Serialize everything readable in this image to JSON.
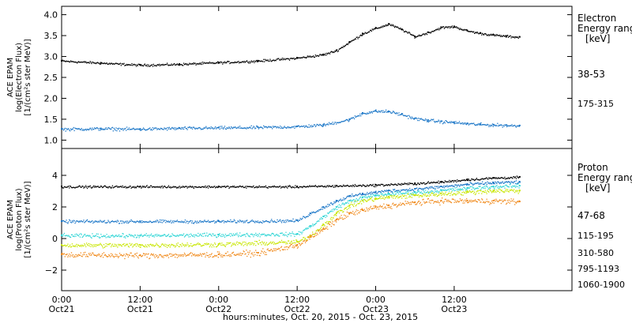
{
  "chart_data": [
    {
      "type": "scatter",
      "panel": "electron",
      "ylabel_lines": [
        "ACE EPAM",
        "log(Electron Flux)",
        "[1/(cm²s ster MeV)]"
      ],
      "ylim": [
        0.8,
        4.2
      ],
      "yticks": [
        1.0,
        1.5,
        2.0,
        2.5,
        3.0,
        3.5,
        4.0
      ],
      "ytick_labels": [
        "1.0",
        "1.5",
        "2.0",
        "2.5",
        "3.0",
        "3.5",
        "4.0"
      ],
      "legend_title_lines": [
        "Electron",
        "Energy ranges",
        "[keV]"
      ],
      "series": [
        {
          "name": "38-53",
          "color": "#000000",
          "x": [
            0,
            6,
            12,
            18,
            24,
            30,
            36,
            40,
            42,
            44,
            46,
            48,
            50,
            52,
            54,
            56,
            58,
            60,
            62,
            64,
            66,
            68,
            70
          ],
          "y": [
            2.9,
            2.85,
            2.8,
            2.82,
            2.86,
            2.9,
            2.97,
            3.05,
            3.15,
            3.35,
            3.55,
            3.68,
            3.78,
            3.65,
            3.48,
            3.58,
            3.7,
            3.72,
            3.62,
            3.56,
            3.52,
            3.49,
            3.47
          ]
        },
        {
          "name": "175-315",
          "color": "#1e78c8",
          "x": [
            0,
            6,
            12,
            18,
            24,
            30,
            36,
            40,
            44,
            46,
            48,
            50,
            52,
            54,
            56,
            58,
            60,
            62,
            64,
            66,
            68,
            70
          ],
          "y": [
            1.27,
            1.28,
            1.27,
            1.29,
            1.3,
            1.31,
            1.33,
            1.37,
            1.5,
            1.65,
            1.7,
            1.69,
            1.62,
            1.52,
            1.48,
            1.45,
            1.43,
            1.4,
            1.38,
            1.37,
            1.36,
            1.35
          ]
        }
      ]
    },
    {
      "type": "scatter",
      "panel": "proton",
      "ylabel_lines": [
        "ACE EPAM",
        "log(Proton Flux)",
        "[1/(cm²s ster MeV)]"
      ],
      "ylim": [
        -3.3,
        5.7
      ],
      "yticks": [
        -2,
        0,
        2,
        4
      ],
      "ytick_labels": [
        "−2",
        "0",
        "2",
        "4"
      ],
      "legend_title_lines": [
        "Proton",
        "Energy ranges",
        "[keV]"
      ],
      "series": [
        {
          "name": "47-68",
          "color": "#000000",
          "x": [
            0,
            12,
            24,
            36,
            42,
            48,
            54,
            58,
            62,
            66,
            70
          ],
          "y": [
            3.3,
            3.3,
            3.3,
            3.3,
            3.35,
            3.4,
            3.5,
            3.6,
            3.75,
            3.85,
            3.9
          ]
        },
        {
          "name": "115-195",
          "color": "#1e78c8",
          "x": [
            0,
            12,
            24,
            36,
            38,
            40,
            42,
            44,
            46,
            48,
            50,
            54,
            58,
            62,
            66,
            70
          ],
          "y": [
            1.1,
            1.1,
            1.1,
            1.15,
            1.6,
            2.0,
            2.4,
            2.7,
            2.85,
            2.95,
            3.05,
            3.15,
            3.3,
            3.45,
            3.55,
            3.6
          ]
        },
        {
          "name": "310-580",
          "color": "#33d6d6",
          "x": [
            0,
            12,
            24,
            36,
            38,
            40,
            42,
            44,
            46,
            48,
            50,
            54,
            58,
            62,
            66,
            70
          ],
          "y": [
            0.2,
            0.2,
            0.25,
            0.3,
            0.8,
            1.4,
            2.0,
            2.4,
            2.6,
            2.75,
            2.85,
            2.95,
            3.05,
            3.2,
            3.3,
            3.35
          ]
        },
        {
          "name": "795-1193",
          "color": "#c8e600",
          "x": [
            0,
            12,
            24,
            36,
            38,
            40,
            42,
            44,
            46,
            48,
            50,
            54,
            58,
            62,
            66,
            70
          ],
          "y": [
            -0.4,
            -0.4,
            -0.35,
            -0.2,
            0.2,
            0.9,
            1.6,
            2.1,
            2.4,
            2.55,
            2.65,
            2.75,
            2.85,
            2.95,
            3.05,
            3.05
          ]
        },
        {
          "name": "1060-1900",
          "color": "#f08a1c",
          "x": [
            0,
            12,
            24,
            30,
            36,
            38,
            40,
            42,
            44,
            46,
            48,
            50,
            54,
            58,
            62,
            66,
            70
          ],
          "y": [
            -1.0,
            -1.05,
            -1.0,
            -0.9,
            -0.4,
            0.1,
            0.6,
            1.2,
            1.6,
            1.8,
            2.0,
            2.1,
            2.3,
            2.4,
            2.4,
            2.4,
            2.35
          ]
        }
      ]
    }
  ],
  "xaxis": {
    "xlim": [
      0,
      78
    ],
    "ticks": [
      0,
      12,
      24,
      36,
      48,
      60
    ],
    "tick_labels": [
      "0:00",
      "12:00",
      "0:00",
      "12:00",
      "0:00",
      "12:00"
    ],
    "tick_sublabels": [
      "Oct21",
      "Oct21",
      "Oct22",
      "Oct22",
      "Oct23",
      "Oct23"
    ],
    "xlabel": "hours:minutes, Oct. 20, 2015 - Oct. 23, 2015"
  }
}
